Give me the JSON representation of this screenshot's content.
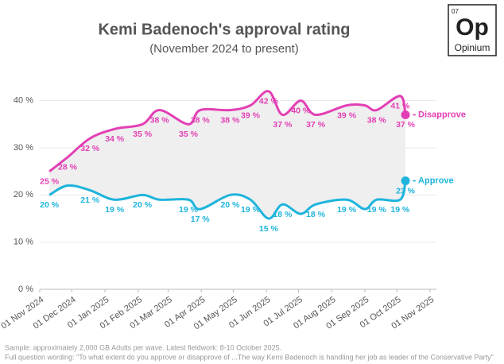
{
  "chart_data": {
    "type": "line",
    "title": "Kemi Badenoch's approval rating",
    "subtitle": "(November 2024 to present)",
    "x": [
      "2024-11-10",
      "2024-11-27",
      "2024-12-18",
      "2025-01-10",
      "2025-02-05",
      "2025-02-21",
      "2025-03-20",
      "2025-03-31",
      "2025-04-28",
      "2025-05-17",
      "2025-06-03",
      "2025-06-16",
      "2025-07-03",
      "2025-07-17",
      "2025-08-15",
      "2025-09-01",
      "2025-09-12",
      "2025-10-04",
      "2025-10-09"
    ],
    "series": [
      {
        "name": "Disapprove",
        "color": "#e33fb5",
        "values": [
          25,
          28,
          32,
          34,
          35,
          38,
          35,
          38,
          38,
          39,
          42,
          37,
          40,
          37,
          39,
          39,
          38,
          41,
          37
        ],
        "value_labels": [
          "25 %",
          "28 %",
          "32 %",
          "34 %",
          "35 %",
          "38 %",
          "35 %",
          "38 %",
          "38 %",
          "39 %",
          "42 %",
          "37 %",
          "40 %",
          "37 %",
          "39 %",
          null,
          "38 %",
          "41 %",
          "37 %"
        ]
      },
      {
        "name": "Approve",
        "color": "#1eb4dc",
        "values": [
          20,
          22,
          21,
          19,
          20,
          19,
          19,
          17,
          20,
          19,
          15,
          18,
          16,
          18,
          19,
          17,
          19,
          19,
          23
        ],
        "value_labels": [
          "20 %",
          null,
          "21 %",
          "19 %",
          "20 %",
          null,
          "19 %",
          "17 %",
          "20 %",
          "19 %",
          "15 %",
          "18 %",
          null,
          "18 %",
          "19 %",
          null,
          "19 %",
          "19 %",
          "23 %"
        ]
      }
    ],
    "xlim": [
      "2024-11-01",
      "2025-11-01"
    ],
    "xticks": [
      {
        "value": "2024-11-01",
        "label": "01 Nov 2024"
      },
      {
        "value": "2024-12-01",
        "label": "01 Dec 2024"
      },
      {
        "value": "2025-01-01",
        "label": "01 Jan 2025"
      },
      {
        "value": "2025-02-01",
        "label": "01 Feb 2025"
      },
      {
        "value": "2025-03-01",
        "label": "01 Mar 2025"
      },
      {
        "value": "2025-04-01",
        "label": "01 Apr 2025"
      },
      {
        "value": "2025-05-01",
        "label": "01 May 2025"
      },
      {
        "value": "2025-06-01",
        "label": "01 Jun 2025"
      },
      {
        "value": "2025-07-01",
        "label": "01 Jul 2025"
      },
      {
        "value": "2025-08-01",
        "label": "01 Aug 2025"
      },
      {
        "value": "2025-09-01",
        "label": "01 Sep 2025"
      },
      {
        "value": "2025-10-01",
        "label": "01 Oct 2025"
      },
      {
        "value": "2025-11-01",
        "label": "01 Nov 2025"
      }
    ],
    "ylim": [
      0,
      45
    ],
    "yticks": [
      {
        "value": 0,
        "label": "0 %"
      },
      {
        "value": 10,
        "label": "10 %"
      },
      {
        "value": 20,
        "label": "20 %"
      },
      {
        "value": 30,
        "label": "30 %"
      },
      {
        "value": 40,
        "label": "40 %"
      }
    ],
    "grid": true,
    "notes": [
      "Sample: approximately 2,000 GB Adults per wave. Latest fieldwork: 8-10 October 2025.",
      "Full question wording: \"To what extent do you approve or disapprove of ...The way Kemi Badenoch is handling her job as leader of the Conservative Party\""
    ]
  },
  "logo": {
    "number": "07",
    "mark": "Op",
    "name": "Opinium"
  }
}
